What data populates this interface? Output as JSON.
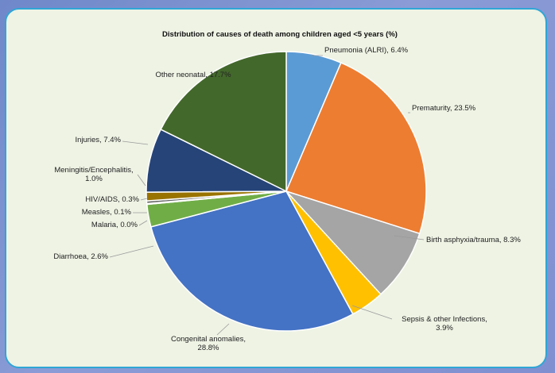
{
  "chart_data": {
    "type": "pie",
    "title": "Distribution of causes of death among children aged <5 years (%)",
    "slices": [
      {
        "name": "Pneumonia (ALRI)",
        "value": 6.4,
        "label": "Pneumonia (ALRI), 6.4%",
        "color": "#5b9bd5"
      },
      {
        "name": "Prematurity",
        "value": 23.5,
        "label": "Prematurity, 23.5%",
        "color": "#ed7d31"
      },
      {
        "name": "Birth asphyxia/trauma",
        "value": 8.3,
        "label": "Birth asphyxia/trauma, 8.3%",
        "color": "#a5a5a5"
      },
      {
        "name": "Sepsis & other Infections",
        "value": 3.9,
        "label": "Sepsis & other Infections, 3.9%",
        "color": "#ffc000"
      },
      {
        "name": "Congenital anomalies",
        "value": 28.8,
        "label": "Congenital anomalies, 28.8%",
        "color": "#4472c4"
      },
      {
        "name": "Diarrhoea",
        "value": 2.6,
        "label": "Diarrhoea, 2.6%",
        "color": "#70ad47"
      },
      {
        "name": "Malaria",
        "value": 0.0,
        "label": "Malaria, 0.0%",
        "color": "#264478"
      },
      {
        "name": "Measles",
        "value": 0.1,
        "label": "Measles, 0.1%",
        "color": "#9e480e"
      },
      {
        "name": "HIV/AIDS",
        "value": 0.3,
        "label": "HIV/AIDS, 0.3%",
        "color": "#636363"
      },
      {
        "name": "Meningitis/Encephalitis",
        "value": 1.0,
        "label": "Meningitis/Encephalitis, 1.0%",
        "color": "#997300"
      },
      {
        "name": "Injuries",
        "value": 7.4,
        "label": "Injuries, 7.4%",
        "color": "#264478"
      },
      {
        "name": "Other neonatal",
        "value": 17.7,
        "label": "Other neonatal, 17.7%",
        "color": "#43682b"
      }
    ]
  }
}
